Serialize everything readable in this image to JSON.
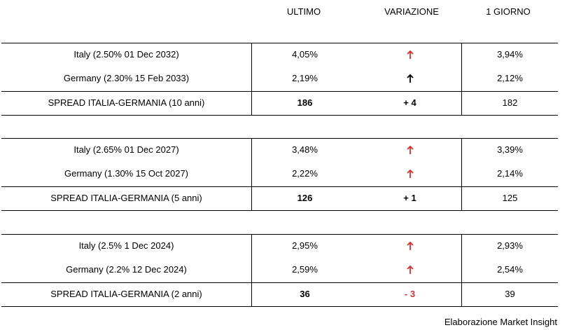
{
  "headers": {
    "last": "ULTIMO",
    "change": "VARIAZIONE",
    "day": "1 GIORNO"
  },
  "colors": {
    "up_red": "#d0312d",
    "up_black": "#000000",
    "negative": "#d0312d"
  },
  "blocks": [
    {
      "rows": [
        {
          "label": "Italy (2.50% 01 Dec 2032)",
          "last": "4,05%",
          "change_icon": "arrow-up-icon",
          "change_color": "red",
          "day": "3,94%"
        },
        {
          "label": "Germany (2.30% 15 Feb 2033)",
          "last": "2,19%",
          "change_icon": "arrow-up-icon",
          "change_color": "black",
          "day": "2,12%"
        }
      ],
      "spread": {
        "label": "SPREAD ITALIA-GERMANIA (10 anni)",
        "last": "186",
        "change": "+ 4",
        "day": "182"
      }
    },
    {
      "rows": [
        {
          "label": "Italy (2.65% 01 Dec 2027)",
          "last": "3,48%",
          "change_icon": "arrow-up-icon",
          "change_color": "red",
          "day": "3,39%"
        },
        {
          "label": "Germany (1.30% 15 Oct 2027)",
          "last": "2,22%",
          "change_icon": "arrow-up-icon",
          "change_color": "red",
          "day": "2,14%"
        }
      ],
      "spread": {
        "label": "SPREAD ITALIA-GERMANIA (5 anni)",
        "last": "126",
        "change": "+ 1",
        "day": "125"
      }
    },
    {
      "rows": [
        {
          "label": "Italy (2.5% 1 Dec 2024)",
          "last": "2,95%",
          "change_icon": "arrow-up-icon",
          "change_color": "red",
          "day": "2,93%"
        },
        {
          "label": "Germany (2.2% 12 Dec 2024)",
          "last": "2,59%",
          "change_icon": "arrow-up-icon",
          "change_color": "red",
          "day": "2,54%"
        }
      ],
      "spread": {
        "label": "SPREAD ITALIA-GERMANIA (2 anni)",
        "last": "36",
        "change": "- 3",
        "day": "39"
      }
    }
  ],
  "footer": "Elaborazione Market Insight"
}
